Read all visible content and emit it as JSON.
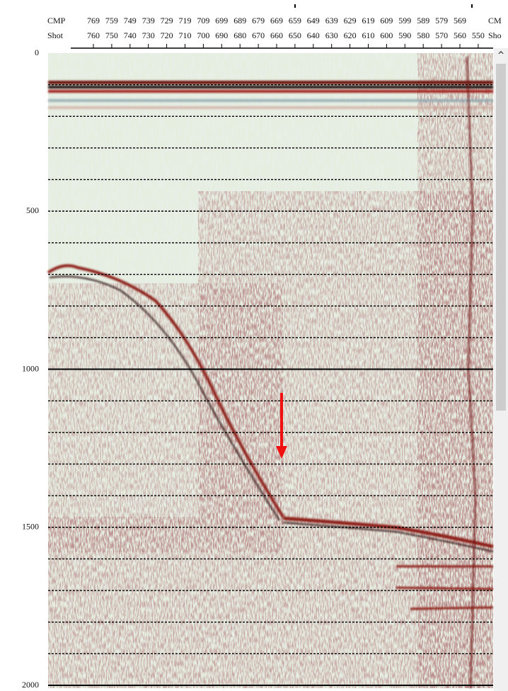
{
  "header": {
    "row1_label": "CMP",
    "row2_label": "Shot",
    "cmp_labels": [
      "769",
      "759",
      "749",
      "739",
      "729",
      "719",
      "709",
      "699",
      "689",
      "679",
      "669",
      "659",
      "649",
      "639",
      "629",
      "619",
      "609",
      "599",
      "589",
      "579",
      "569"
    ],
    "shot_labels": [
      "760",
      "750",
      "740",
      "730",
      "720",
      "710",
      "700",
      "690",
      "680",
      "670",
      "660",
      "650",
      "640",
      "630",
      "620",
      "610",
      "600",
      "590",
      "580",
      "570",
      "560",
      "550"
    ],
    "right_row1": "CM",
    "right_row2": "Sho"
  },
  "time_axis": {
    "labels": [
      0,
      500,
      1000,
      1500,
      2000
    ]
  },
  "scrollbar": {
    "up_arrow": "^"
  }
}
